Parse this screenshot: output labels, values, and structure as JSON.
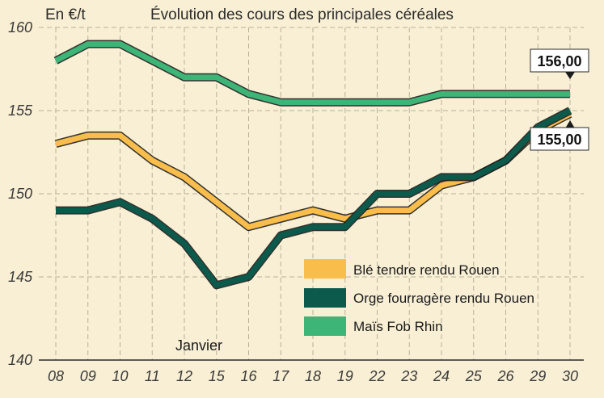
{
  "chart_data": {
    "type": "line",
    "title": "Évolution des cours des principales céréales",
    "ylabel": "En €/t",
    "xlabel": "",
    "categories": [
      "08",
      "09",
      "10",
      "11",
      "12",
      "15",
      "16",
      "17",
      "18",
      "19",
      "22",
      "23",
      "24",
      "25",
      "26",
      "29",
      "30"
    ],
    "ylim": [
      140,
      160
    ],
    "yticks": [
      140,
      145,
      150,
      155,
      160
    ],
    "grid": true,
    "legend_position": "bottom-right",
    "series": [
      {
        "name": "Blé tendre rendu Rouen",
        "color": "#f9bd4c",
        "values": [
          153,
          153.5,
          153.5,
          152,
          151,
          149.5,
          148,
          148.5,
          149,
          148.5,
          149,
          149,
          150.5,
          151,
          152,
          153.8,
          154.8
        ]
      },
      {
        "name": "Orge fourragère rendu Rouen",
        "color": "#0b5a4c",
        "values": [
          149,
          149,
          149.5,
          148.5,
          147,
          144.5,
          145,
          147.5,
          148,
          148,
          150,
          150,
          151,
          151,
          152,
          154,
          155
        ]
      },
      {
        "name": "Maïs Fob Rhin",
        "color": "#3db577",
        "values": [
          158,
          159,
          159,
          158,
          157,
          157,
          156,
          155.5,
          155.5,
          155.5,
          155.5,
          155.5,
          156,
          156,
          156,
          156,
          156
        ]
      }
    ],
    "annotations": [
      {
        "text": "Janvier"
      },
      {
        "text": "156,00"
      },
      {
        "text": "155,00"
      }
    ]
  }
}
